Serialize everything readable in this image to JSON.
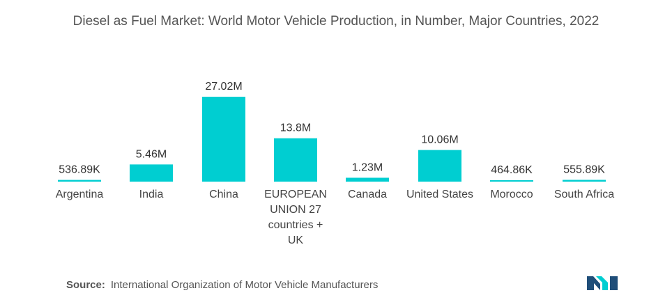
{
  "chart_data": {
    "type": "bar",
    "title": "Diesel as Fuel Market: World Motor Vehicle Production, in Number, Major Countries, 2022",
    "categories": [
      "Argentina",
      "India",
      "China",
      "EUROPEAN UNION 27 countries + UK",
      "Canada",
      "United States",
      "Morocco",
      "South Africa"
    ],
    "category_lines": [
      [
        "Argentina"
      ],
      [
        "India"
      ],
      [
        "China"
      ],
      [
        "EUROPEAN",
        "UNION 27",
        "countries +",
        "UK"
      ],
      [
        "Canada"
      ],
      [
        "United States"
      ],
      [
        "Morocco"
      ],
      [
        "South Africa"
      ]
    ],
    "values": [
      536890,
      5460000,
      27020000,
      13800000,
      1230000,
      10060000,
      464860,
      555890
    ],
    "data_labels": [
      "536.89K",
      "5.46M",
      "27.02M",
      "13.8M",
      "1.23M",
      "10.06M",
      "464.86K",
      "555.89K"
    ],
    "xlabel": "",
    "ylabel": "",
    "ylim": [
      0,
      27020000
    ],
    "grid": false,
    "legend": "none",
    "bar_color": "#00CED1"
  },
  "source": {
    "label": "Source:",
    "text": "International Organization of Motor Vehicle Manufacturers"
  },
  "logo": {
    "icon": "mordor-intelligence-logo-icon",
    "colors": [
      "#1F4E79",
      "#00CED1"
    ]
  }
}
